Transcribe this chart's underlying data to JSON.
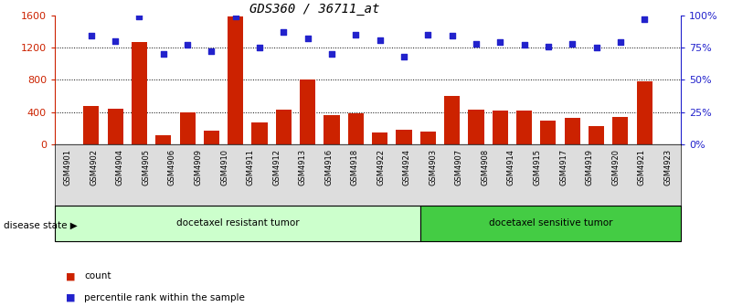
{
  "title": "GDS360 / 36711_at",
  "categories": [
    "GSM4901",
    "GSM4902",
    "GSM4904",
    "GSM4905",
    "GSM4906",
    "GSM4909",
    "GSM4910",
    "GSM4911",
    "GSM4912",
    "GSM4913",
    "GSM4916",
    "GSM4918",
    "GSM4922",
    "GSM4924",
    "GSM4903",
    "GSM4907",
    "GSM4908",
    "GSM4914",
    "GSM4915",
    "GSM4917",
    "GSM4919",
    "GSM4920",
    "GSM4921",
    "GSM4923"
  ],
  "bar_values": [
    480,
    440,
    1270,
    110,
    400,
    165,
    1590,
    270,
    430,
    800,
    360,
    380,
    150,
    175,
    155,
    600,
    430,
    420,
    420,
    290,
    330,
    230,
    340,
    780
  ],
  "dot_values": [
    84,
    80,
    99,
    70,
    77,
    72,
    99,
    75,
    87,
    82,
    70,
    85,
    81,
    68,
    85,
    84,
    78,
    79,
    77,
    76,
    78,
    75,
    79,
    97
  ],
  "bar_color": "#cc2200",
  "dot_color": "#2222cc",
  "left_ylim": [
    0,
    1600
  ],
  "right_ylim": [
    0,
    100
  ],
  "left_yticks": [
    0,
    400,
    800,
    1200,
    1600
  ],
  "right_yticks": [
    0,
    25,
    50,
    75,
    100
  ],
  "right_yticklabels": [
    "0%",
    "25%",
    "50%",
    "75%",
    "100%"
  ],
  "grid_values": [
    400,
    800,
    1200
  ],
  "resistant_label": "docetaxel resistant tumor",
  "sensitive_label": "docetaxel sensitive tumor",
  "disease_state_label": "disease state",
  "resistant_count": 14,
  "sensitive_count": 10,
  "legend_count_label": "count",
  "legend_percentile_label": "percentile rank within the sample",
  "resistant_color": "#ccffcc",
  "sensitive_color": "#44cc44",
  "xtick_bg": "#dddddd",
  "title_fontsize": 10,
  "label_fontsize": 7,
  "tick_fontsize": 6.5
}
